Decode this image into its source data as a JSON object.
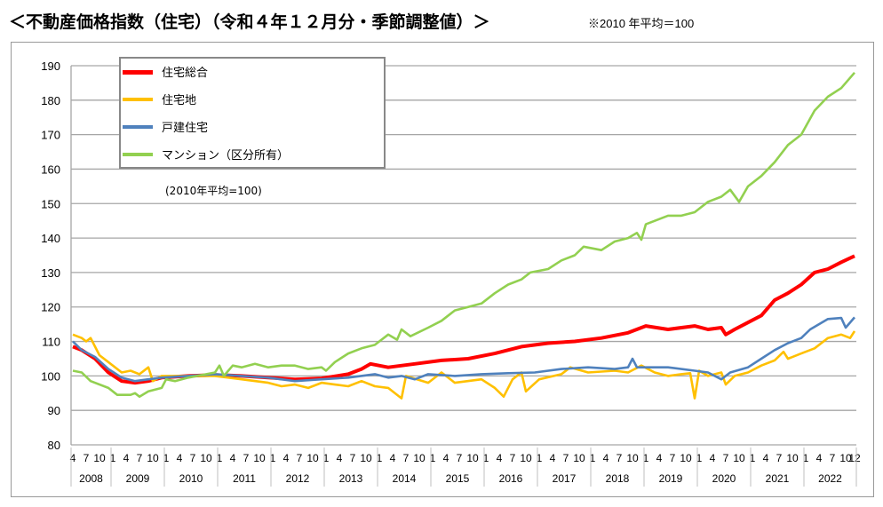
{
  "header": {
    "title": "＜不動産価格指数（住宅）（令和４年１２月分・季節調整値）＞",
    "note": "※2010 年平均＝100"
  },
  "chart_data": {
    "type": "line",
    "title": "＜不動産価格指数（住宅）（令和４年１２月分・季節調整値）＞",
    "annotation": "(2010年平均=100)",
    "ylim": [
      80,
      190
    ],
    "y_ticks": [
      80,
      90,
      100,
      110,
      120,
      130,
      140,
      150,
      160,
      170,
      180,
      190
    ],
    "x_range": [
      "2008-04",
      "2022-12"
    ],
    "month_tick_labels": [
      "4",
      "7",
      "10",
      "1",
      "4",
      "7",
      "10",
      "1",
      "4",
      "7",
      "10",
      "1",
      "4",
      "7",
      "10",
      "1",
      "4",
      "7",
      "10",
      "1",
      "4",
      "7",
      "10",
      "1",
      "4",
      "7",
      "10",
      "1",
      "4",
      "7",
      "10",
      "1",
      "4",
      "7",
      "10",
      "1",
      "4",
      "7",
      "10",
      "1",
      "4",
      "7",
      "10",
      "1",
      "4",
      "7",
      "10",
      "1",
      "4",
      "7",
      "10",
      "1",
      "4",
      "7",
      "10",
      "1",
      "4",
      "7",
      "10",
      "12"
    ],
    "year_labels": [
      "2008",
      "2009",
      "2010",
      "2011",
      "2012",
      "2013",
      "2014",
      "2015",
      "2016",
      "2017",
      "2018",
      "2019",
      "2020",
      "2021",
      "2022"
    ],
    "grid": true,
    "legend": "top-left",
    "series": [
      {
        "name": "住宅総合",
        "color": "#ff0000",
        "points": [
          [
            "2008-04",
            108.5
          ],
          [
            "2008-06",
            107.5
          ],
          [
            "2008-09",
            105
          ],
          [
            "2008-12",
            101
          ],
          [
            "2009-03",
            98.5
          ],
          [
            "2009-06",
            98
          ],
          [
            "2009-09",
            98.5
          ],
          [
            "2009-12",
            99.5
          ],
          [
            "2010-06",
            100
          ],
          [
            "2010-12",
            100.3
          ],
          [
            "2011-06",
            100
          ],
          [
            "2011-12",
            99.5
          ],
          [
            "2012-06",
            99
          ],
          [
            "2012-12",
            99.3
          ],
          [
            "2013-06",
            100.5
          ],
          [
            "2013-09",
            102
          ],
          [
            "2013-11",
            103.5
          ],
          [
            "2014-03",
            102.5
          ],
          [
            "2014-09",
            103.5
          ],
          [
            "2015-03",
            104.5
          ],
          [
            "2015-09",
            105
          ],
          [
            "2016-03",
            106.5
          ],
          [
            "2016-09",
            108.5
          ],
          [
            "2017-03",
            109.5
          ],
          [
            "2017-09",
            110
          ],
          [
            "2018-03",
            111
          ],
          [
            "2018-09",
            112.5
          ],
          [
            "2019-01",
            114.5
          ],
          [
            "2019-06",
            113.5
          ],
          [
            "2019-12",
            114.5
          ],
          [
            "2020-03",
            113.5
          ],
          [
            "2020-06",
            114
          ],
          [
            "2020-07",
            112
          ],
          [
            "2020-09",
            113.5
          ],
          [
            "2020-12",
            115.5
          ],
          [
            "2021-03",
            117.5
          ],
          [
            "2021-06",
            122
          ],
          [
            "2021-09",
            124
          ],
          [
            "2021-12",
            126.5
          ],
          [
            "2022-03",
            130
          ],
          [
            "2022-06",
            131
          ],
          [
            "2022-09",
            133
          ],
          [
            "2022-12",
            134.8
          ]
        ]
      },
      {
        "name": "住宅地",
        "color": "#ffc000",
        "points": [
          [
            "2008-04",
            112
          ],
          [
            "2008-06",
            111
          ],
          [
            "2008-07",
            110
          ],
          [
            "2008-08",
            111
          ],
          [
            "2008-10",
            106
          ],
          [
            "2008-12",
            104
          ],
          [
            "2009-03",
            101
          ],
          [
            "2009-05",
            101.5
          ],
          [
            "2009-07",
            100.5
          ],
          [
            "2009-09",
            102.5
          ],
          [
            "2009-10",
            98.5
          ],
          [
            "2009-12",
            100
          ],
          [
            "2010-06",
            100
          ],
          [
            "2010-12",
            100
          ],
          [
            "2011-06",
            99
          ],
          [
            "2011-12",
            98
          ],
          [
            "2012-03",
            97
          ],
          [
            "2012-06",
            97.5
          ],
          [
            "2012-09",
            96.5
          ],
          [
            "2012-12",
            98
          ],
          [
            "2013-03",
            97.5
          ],
          [
            "2013-06",
            97
          ],
          [
            "2013-09",
            98.5
          ],
          [
            "2013-12",
            97
          ],
          [
            "2014-03",
            96.5
          ],
          [
            "2014-06",
            93.5
          ],
          [
            "2014-07",
            100
          ],
          [
            "2014-12",
            98
          ],
          [
            "2015-03",
            101
          ],
          [
            "2015-06",
            98
          ],
          [
            "2015-12",
            99
          ],
          [
            "2016-03",
            96.5
          ],
          [
            "2016-05",
            94
          ],
          [
            "2016-07",
            99
          ],
          [
            "2016-09",
            101
          ],
          [
            "2016-10",
            95.5
          ],
          [
            "2017-01",
            99
          ],
          [
            "2017-06",
            100.5
          ],
          [
            "2017-08",
            102.5
          ],
          [
            "2017-12",
            101
          ],
          [
            "2018-06",
            101.5
          ],
          [
            "2018-09",
            101
          ],
          [
            "2018-12",
            103
          ],
          [
            "2019-03",
            101
          ],
          [
            "2019-06",
            100
          ],
          [
            "2019-09",
            100.5
          ],
          [
            "2019-11",
            100.8
          ],
          [
            "2019-12",
            93.5
          ],
          [
            "2020-01",
            101.5
          ],
          [
            "2020-03",
            100
          ],
          [
            "2020-06",
            101
          ],
          [
            "2020-07",
            97.5
          ],
          [
            "2020-09",
            100
          ],
          [
            "2020-12",
            101
          ],
          [
            "2021-03",
            103
          ],
          [
            "2021-06",
            104.5
          ],
          [
            "2021-08",
            107
          ],
          [
            "2021-09",
            105
          ],
          [
            "2021-12",
            106.5
          ],
          [
            "2022-03",
            108
          ],
          [
            "2022-06",
            111
          ],
          [
            "2022-09",
            112
          ],
          [
            "2022-11",
            111
          ],
          [
            "2022-12",
            113
          ]
        ]
      },
      {
        "name": "戸建住宅",
        "color": "#4f81bd",
        "points": [
          [
            "2008-04",
            110
          ],
          [
            "2008-06",
            107.5
          ],
          [
            "2008-09",
            105.5
          ],
          [
            "2008-12",
            102
          ],
          [
            "2009-03",
            99.5
          ],
          [
            "2009-06",
            98.5
          ],
          [
            "2009-09",
            99
          ],
          [
            "2009-12",
            99.5
          ],
          [
            "2010-06",
            100
          ],
          [
            "2010-12",
            100.5
          ],
          [
            "2011-06",
            100
          ],
          [
            "2011-12",
            99.5
          ],
          [
            "2012-06",
            98.5
          ],
          [
            "2012-12",
            99
          ],
          [
            "2013-06",
            99.5
          ],
          [
            "2013-12",
            100.5
          ],
          [
            "2014-03",
            99.5
          ],
          [
            "2014-06",
            100
          ],
          [
            "2014-09",
            99
          ],
          [
            "2014-12",
            100.5
          ],
          [
            "2015-06",
            100
          ],
          [
            "2015-12",
            100.5
          ],
          [
            "2016-06",
            100.8
          ],
          [
            "2016-12",
            101
          ],
          [
            "2017-06",
            102
          ],
          [
            "2017-12",
            102.5
          ],
          [
            "2018-06",
            102
          ],
          [
            "2018-09",
            102.5
          ],
          [
            "2018-10",
            105
          ],
          [
            "2018-11",
            102.5
          ],
          [
            "2019-06",
            102.5
          ],
          [
            "2019-12",
            101.5
          ],
          [
            "2020-03",
            101
          ],
          [
            "2020-06",
            99
          ],
          [
            "2020-08",
            101
          ],
          [
            "2020-12",
            102.5
          ],
          [
            "2021-03",
            105
          ],
          [
            "2021-06",
            107.5
          ],
          [
            "2021-09",
            109.5
          ],
          [
            "2021-12",
            111
          ],
          [
            "2022-02",
            113.5
          ],
          [
            "2022-06",
            116.5
          ],
          [
            "2022-09",
            116.8
          ],
          [
            "2022-10",
            114
          ],
          [
            "2022-12",
            117
          ]
        ]
      },
      {
        "name": "マンション（区分所有）",
        "color": "#92d050",
        "points": [
          [
            "2008-04",
            101.5
          ],
          [
            "2008-06",
            101
          ],
          [
            "2008-08",
            98.5
          ],
          [
            "2008-12",
            96.5
          ],
          [
            "2009-02",
            94.5
          ],
          [
            "2009-05",
            94.5
          ],
          [
            "2009-06",
            95
          ],
          [
            "2009-07",
            94
          ],
          [
            "2009-09",
            95.5
          ],
          [
            "2009-12",
            96.5
          ],
          [
            "2010-01",
            99
          ],
          [
            "2010-03",
            98.5
          ],
          [
            "2010-06",
            99.5
          ],
          [
            "2010-12",
            101
          ],
          [
            "2011-01",
            103
          ],
          [
            "2011-02",
            100
          ],
          [
            "2011-04",
            103
          ],
          [
            "2011-06",
            102.5
          ],
          [
            "2011-09",
            103.5
          ],
          [
            "2011-12",
            102.5
          ],
          [
            "2012-03",
            103
          ],
          [
            "2012-06",
            103
          ],
          [
            "2012-09",
            102
          ],
          [
            "2012-12",
            102.5
          ],
          [
            "2013-01",
            101.5
          ],
          [
            "2013-03",
            104
          ],
          [
            "2013-06",
            106.5
          ],
          [
            "2013-09",
            108
          ],
          [
            "2013-12",
            109
          ],
          [
            "2014-03",
            112
          ],
          [
            "2014-05",
            110.5
          ],
          [
            "2014-06",
            113.5
          ],
          [
            "2014-08",
            111.5
          ],
          [
            "2014-12",
            114
          ],
          [
            "2015-03",
            116
          ],
          [
            "2015-06",
            119
          ],
          [
            "2015-09",
            120
          ],
          [
            "2015-12",
            121
          ],
          [
            "2016-03",
            124
          ],
          [
            "2016-06",
            126.5
          ],
          [
            "2016-09",
            128
          ],
          [
            "2016-11",
            130
          ],
          [
            "2017-03",
            131
          ],
          [
            "2017-06",
            133.5
          ],
          [
            "2017-09",
            135
          ],
          [
            "2017-11",
            137.5
          ],
          [
            "2018-03",
            136.5
          ],
          [
            "2018-06",
            139
          ],
          [
            "2018-09",
            140
          ],
          [
            "2018-11",
            141.5
          ],
          [
            "2018-12",
            139.5
          ],
          [
            "2019-01",
            144
          ],
          [
            "2019-06",
            146.5
          ],
          [
            "2019-09",
            146.5
          ],
          [
            "2019-12",
            147.5
          ],
          [
            "2020-03",
            150.5
          ],
          [
            "2020-06",
            152
          ],
          [
            "2020-08",
            154
          ],
          [
            "2020-10",
            150.5
          ],
          [
            "2020-12",
            155
          ],
          [
            "2021-03",
            158
          ],
          [
            "2021-06",
            162
          ],
          [
            "2021-09",
            167
          ],
          [
            "2021-12",
            170
          ],
          [
            "2022-03",
            177
          ],
          [
            "2022-06",
            181
          ],
          [
            "2022-09",
            183.5
          ],
          [
            "2022-12",
            188
          ]
        ]
      }
    ]
  }
}
